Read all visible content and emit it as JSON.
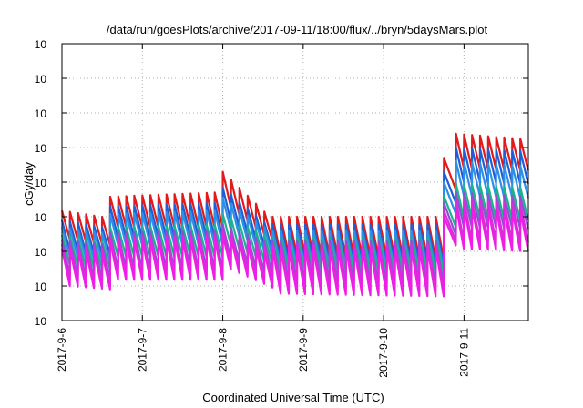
{
  "chart_data": {
    "type": "line",
    "title": "/data/run/goesPlots/archive/2017-09-11/18:00/flux/../bryn/5daysMars.plot",
    "xlabel": "Coordinated Universal Time (UTC)",
    "ylabel": "cGy/day",
    "yscale": "log",
    "ylim": [
      0.0001,
      10000
    ],
    "y_ticks": [
      {
        "base": "10",
        "exp": "-4",
        "value": 0.0001
      },
      {
        "base": "10",
        "exp": "-3",
        "value": 0.001
      },
      {
        "base": "10",
        "exp": "-2",
        "value": 0.01
      },
      {
        "base": "10",
        "exp": "-1",
        "value": 0.1
      },
      {
        "base": "10",
        "exp": "0",
        "value": 1
      },
      {
        "base": "10",
        "exp": "1",
        "value": 10
      },
      {
        "base": "10",
        "exp": "2",
        "value": 100
      },
      {
        "base": "10",
        "exp": "3",
        "value": 1000
      },
      {
        "base": "10",
        "exp": "4",
        "value": 10000
      }
    ],
    "x_ticks": [
      "2017-9-6",
      "2017-9-7",
      "2017-9-8",
      "2017-9-9",
      "2017-9-10",
      "2017-9-11"
    ],
    "xlim_days": [
      0,
      5.8
    ],
    "grid": true,
    "legend": "none",
    "sampling_period_hours": 2.45,
    "series": [
      {
        "color": "#e31a1c",
        "segments": [
          {
            "x": [
              0,
              0.6
            ],
            "peak": [
              0.15,
              0.1
            ],
            "trough": [
              0.022,
              0.015
            ]
          },
          {
            "x": [
              0.6,
              2.0
            ],
            "peak": [
              0.38,
              0.5
            ],
            "trough": [
              0.05,
              0.05
            ]
          },
          {
            "x": [
              2.0,
              2.62
            ],
            "peak": [
              2.0,
              0.14
            ],
            "trough": [
              0.18,
              0.02
            ]
          },
          {
            "x": [
              2.62,
              4.75
            ],
            "peak": [
              0.1,
              0.1
            ],
            "trough": [
              0.008,
              0.006
            ]
          },
          {
            "x": [
              4.75,
              4.9
            ],
            "peak": [
              5.0,
              12
            ],
            "trough": [
              0.6,
              1.2
            ]
          },
          {
            "x": [
              4.9,
              5.8
            ],
            "peak": [
              25,
              18
            ],
            "trough": [
              2.5,
              2.2
            ]
          }
        ]
      },
      {
        "color": "#1f5fd6",
        "segments": [
          {
            "x": [
              0,
              0.6
            ],
            "peak": [
              0.08,
              0.05
            ],
            "trough": [
              0.01,
              0.008
            ]
          },
          {
            "x": [
              0.6,
              2.0
            ],
            "peak": [
              0.2,
              0.25
            ],
            "trough": [
              0.025,
              0.025
            ]
          },
          {
            "x": [
              2.0,
              2.62
            ],
            "peak": [
              0.7,
              0.07
            ],
            "trough": [
              0.07,
              0.01
            ]
          },
          {
            "x": [
              2.62,
              4.75
            ],
            "peak": [
              0.06,
              0.06
            ],
            "trough": [
              0.005,
              0.004
            ]
          },
          {
            "x": [
              4.75,
              4.9
            ],
            "peak": [
              2.0,
              5.0
            ],
            "trough": [
              0.25,
              0.5
            ]
          },
          {
            "x": [
              4.9,
              5.8
            ],
            "peak": [
              10,
              8
            ],
            "trough": [
              1.0,
              0.9
            ]
          }
        ]
      },
      {
        "color": "#2d8fe6",
        "segments": [
          {
            "x": [
              0,
              0.6
            ],
            "peak": [
              0.05,
              0.035
            ],
            "trough": [
              0.007,
              0.005
            ]
          },
          {
            "x": [
              0.6,
              2.0
            ],
            "peak": [
              0.12,
              0.15
            ],
            "trough": [
              0.015,
              0.015
            ]
          },
          {
            "x": [
              2.0,
              2.62
            ],
            "peak": [
              0.35,
              0.05
            ],
            "trough": [
              0.04,
              0.007
            ]
          },
          {
            "x": [
              2.62,
              4.75
            ],
            "peak": [
              0.04,
              0.04
            ],
            "trough": [
              0.004,
              0.003
            ]
          },
          {
            "x": [
              4.75,
              4.9
            ],
            "peak": [
              1.0,
              2.5
            ],
            "trough": [
              0.12,
              0.25
            ]
          },
          {
            "x": [
              4.9,
              5.8
            ],
            "peak": [
              4,
              3
            ],
            "trough": [
              0.4,
              0.35
            ]
          }
        ]
      },
      {
        "color": "#1ab38c",
        "segments": [
          {
            "x": [
              0,
              0.6
            ],
            "peak": [
              0.03,
              0.02
            ],
            "trough": [
              0.004,
              0.003
            ]
          },
          {
            "x": [
              0.6,
              2.0
            ],
            "peak": [
              0.05,
              0.06
            ],
            "trough": [
              0.007,
              0.007
            ]
          },
          {
            "x": [
              2.0,
              2.62
            ],
            "peak": [
              0.12,
              0.03
            ],
            "trough": [
              0.015,
              0.004
            ]
          },
          {
            "x": [
              2.62,
              4.75
            ],
            "peak": [
              0.025,
              0.025
            ],
            "trough": [
              0.003,
              0.0025
            ]
          },
          {
            "x": [
              4.75,
              4.9
            ],
            "peak": [
              0.4,
              0.8
            ],
            "trough": [
              0.05,
              0.08
            ]
          },
          {
            "x": [
              4.9,
              5.8
            ],
            "peak": [
              0.9,
              0.7
            ],
            "trough": [
              0.09,
              0.08
            ]
          }
        ]
      },
      {
        "color": "#8e4fd6",
        "segments": [
          {
            "x": [
              0,
              0.6
            ],
            "peak": [
              0.022,
              0.016
            ],
            "trough": [
              0.002,
              0.0015
            ]
          },
          {
            "x": [
              0.6,
              2.0
            ],
            "peak": [
              0.035,
              0.04
            ],
            "trough": [
              0.003,
              0.003
            ]
          },
          {
            "x": [
              2.0,
              2.62
            ],
            "peak": [
              0.06,
              0.02
            ],
            "trough": [
              0.006,
              0.002
            ]
          },
          {
            "x": [
              2.62,
              4.75
            ],
            "peak": [
              0.02,
              0.02
            ],
            "trough": [
              0.0015,
              0.0012
            ]
          },
          {
            "x": [
              4.75,
              4.9
            ],
            "peak": [
              0.25,
              0.5
            ],
            "trough": [
              0.03,
              0.05
            ]
          },
          {
            "x": [
              4.9,
              5.8
            ],
            "peak": [
              0.5,
              0.4
            ],
            "trough": [
              0.05,
              0.045
            ]
          }
        ]
      },
      {
        "color": "#d62fd6",
        "segments": [
          {
            "x": [
              0,
              0.6
            ],
            "peak": [
              0.016,
              0.012
            ],
            "trough": [
              0.0015,
              0.001
            ]
          },
          {
            "x": [
              0.6,
              2.0
            ],
            "peak": [
              0.025,
              0.03
            ],
            "trough": [
              0.002,
              0.002
            ]
          },
          {
            "x": [
              2.0,
              2.62
            ],
            "peak": [
              0.04,
              0.015
            ],
            "trough": [
              0.004,
              0.0012
            ]
          },
          {
            "x": [
              2.62,
              4.75
            ],
            "peak": [
              0.016,
              0.016
            ],
            "trough": [
              0.0008,
              0.0007
            ]
          },
          {
            "x": [
              4.75,
              4.9
            ],
            "peak": [
              0.15,
              0.3
            ],
            "trough": [
              0.02,
              0.03
            ]
          },
          {
            "x": [
              4.9,
              5.8
            ],
            "peak": [
              0.3,
              0.25
            ],
            "trough": [
              0.02,
              0.018
            ]
          }
        ]
      },
      {
        "color": "#ee1ee6",
        "segments": [
          {
            "x": [
              0,
              0.6
            ],
            "peak": [
              0.012,
              0.009
            ],
            "trough": [
              0.001,
              0.0008
            ]
          },
          {
            "x": [
              0.6,
              2.0
            ],
            "peak": [
              0.02,
              0.025
            ],
            "trough": [
              0.0015,
              0.0015
            ]
          },
          {
            "x": [
              2.0,
              2.62
            ],
            "peak": [
              0.03,
              0.01
            ],
            "trough": [
              0.003,
              0.0009
            ]
          },
          {
            "x": [
              2.62,
              4.75
            ],
            "peak": [
              0.012,
              0.012
            ],
            "trough": [
              0.0006,
              0.0005
            ]
          },
          {
            "x": [
              4.75,
              4.9
            ],
            "peak": [
              0.1,
              0.2
            ],
            "trough": [
              0.015,
              0.02
            ]
          },
          {
            "x": [
              4.9,
              5.8
            ],
            "peak": [
              0.2,
              0.15
            ],
            "trough": [
              0.012,
              0.01
            ]
          }
        ]
      }
    ]
  }
}
